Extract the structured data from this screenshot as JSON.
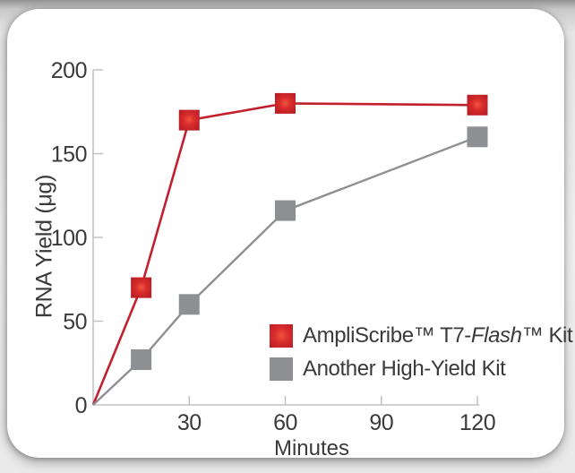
{
  "colors": {
    "accent_red": "#c2202e",
    "marker_red_center": "#f0543e",
    "marker_red_edge": "#b81d25",
    "series_gray": "#8d8f92",
    "axis_gray": "#c2c2c2",
    "text_dark": "#3a3a3c",
    "card_background": "#ffffff"
  },
  "chart_data": {
    "type": "line",
    "title": "",
    "xlabel": "Minutes",
    "ylabel": "RNA Yield (μg)",
    "xlim": [
      0,
      120
    ],
    "ylim": [
      0,
      200
    ],
    "x_ticks": [
      30,
      60,
      90,
      120
    ],
    "y_ticks": [
      0,
      50,
      100,
      150,
      200
    ],
    "grid": false,
    "legend_position": "inside-bottom-right",
    "series": [
      {
        "name": "AmpliScribe™ T7-Flash™ Kit",
        "color": "#c2202e",
        "marker": "square",
        "x": [
          0,
          15,
          30,
          60,
          120
        ],
        "y": [
          0,
          70,
          170,
          180,
          179
        ]
      },
      {
        "name": "Another High-Yield Kit",
        "color": "#8d8f92",
        "marker": "square",
        "x": [
          0,
          15,
          30,
          60,
          120
        ],
        "y": [
          0,
          27,
          60,
          116,
          160
        ]
      }
    ]
  },
  "legend": {
    "items": [
      {
        "swatch": "red-square",
        "parts": [
          {
            "text": "AmpliScribe™ T7-"
          },
          {
            "text": "Flash",
            "italic": true
          },
          {
            "text": "™ Kit"
          }
        ]
      },
      {
        "swatch": "gray-square",
        "parts": [
          {
            "text": "Another High-Yield Kit"
          }
        ]
      }
    ]
  }
}
